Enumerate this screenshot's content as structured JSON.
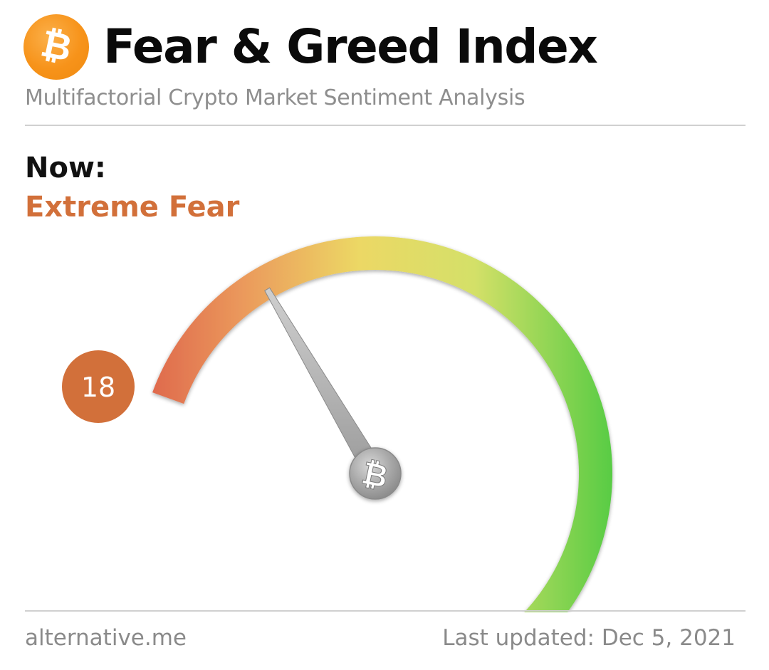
{
  "header": {
    "title": "Fear & Greed Index",
    "subtitle": "Multifactorial Crypto Market Sentiment Analysis",
    "logo_icon": "bitcoin-icon",
    "logo_color": "#f7931a"
  },
  "now": {
    "label": "Now:",
    "classification": "Extreme Fear",
    "classification_color": "#d2703a"
  },
  "chart_data": {
    "type": "gauge",
    "value": 18,
    "value_label": "18",
    "range": [
      0,
      100
    ],
    "needle_hub_icon": "bitcoin-icon",
    "colors": {
      "low": "#e06a4b",
      "mid": "#ead966",
      "high": "#5ccc46",
      "badge": "#d2703a"
    }
  },
  "footer": {
    "source": "alternative.me",
    "last_updated": "Last updated: Dec 5, 2021"
  }
}
